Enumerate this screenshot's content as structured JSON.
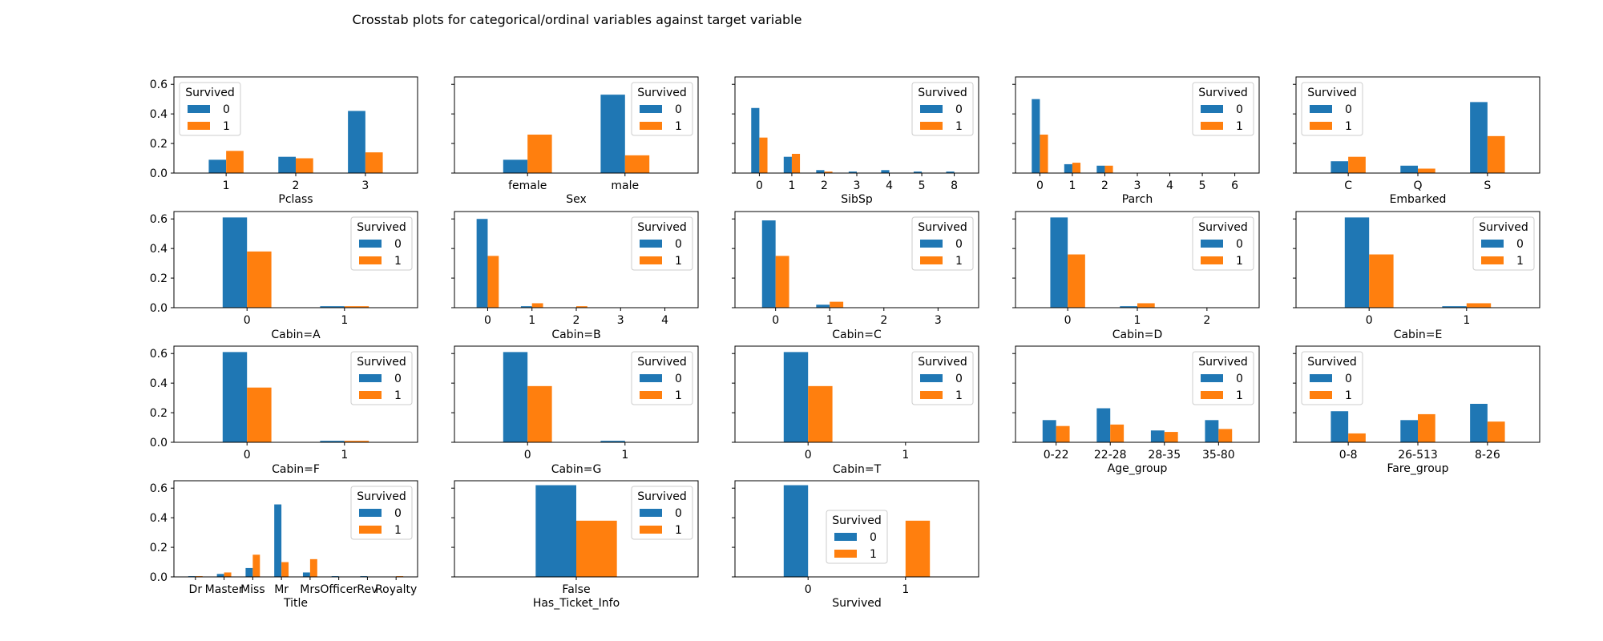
{
  "figure_title": "Crosstab plots for categorical/ordinal variables against target variable",
  "colors": {
    "survived_0": "#1f77b4",
    "survived_1": "#ff7f0e"
  },
  "chart_data": [
    {
      "type": "bar",
      "xlabel": "Pclass",
      "categories": [
        "1",
        "2",
        "3"
      ],
      "ylim": [
        0,
        0.65
      ],
      "yticks": [
        "0.0",
        "0.2",
        "0.4",
        "0.6"
      ],
      "legend": "upper left",
      "legend_title": "Survived",
      "series": [
        {
          "name": "0",
          "values": [
            0.09,
            0.11,
            0.42
          ]
        },
        {
          "name": "1",
          "values": [
            0.15,
            0.1,
            0.14
          ]
        }
      ]
    },
    {
      "type": "bar",
      "xlabel": "Sex",
      "categories": [
        "female",
        "male"
      ],
      "ylim": [
        0,
        0.65
      ],
      "legend": "upper right",
      "legend_title": "Survived",
      "series": [
        {
          "name": "0",
          "values": [
            0.09,
            0.53
          ]
        },
        {
          "name": "1",
          "values": [
            0.26,
            0.12
          ]
        }
      ]
    },
    {
      "type": "bar",
      "xlabel": "SibSp",
      "categories": [
        "0",
        "1",
        "2",
        "3",
        "4",
        "5",
        "8"
      ],
      "ylim": [
        0,
        0.65
      ],
      "legend": "upper right",
      "legend_title": "Survived",
      "series": [
        {
          "name": "0",
          "values": [
            0.44,
            0.11,
            0.02,
            0.01,
            0.02,
            0.01,
            0.01
          ]
        },
        {
          "name": "1",
          "values": [
            0.24,
            0.13,
            0.01,
            0.0,
            0.0,
            0.0,
            0.0
          ]
        }
      ]
    },
    {
      "type": "bar",
      "xlabel": "Parch",
      "categories": [
        "0",
        "1",
        "2",
        "3",
        "4",
        "5",
        "6"
      ],
      "ylim": [
        0,
        0.65
      ],
      "legend": "upper right",
      "legend_title": "Survived",
      "series": [
        {
          "name": "0",
          "values": [
            0.5,
            0.06,
            0.05,
            0.0,
            0.0,
            0.0,
            0.0
          ]
        },
        {
          "name": "1",
          "values": [
            0.26,
            0.07,
            0.05,
            0.0,
            0.0,
            0.0,
            0.0
          ]
        }
      ]
    },
    {
      "type": "bar",
      "xlabel": "Embarked",
      "categories": [
        "C",
        "Q",
        "S"
      ],
      "ylim": [
        0,
        0.65
      ],
      "legend": "upper left",
      "legend_title": "Survived",
      "series": [
        {
          "name": "0",
          "values": [
            0.08,
            0.05,
            0.48
          ]
        },
        {
          "name": "1",
          "values": [
            0.11,
            0.03,
            0.25
          ]
        }
      ]
    },
    {
      "type": "bar",
      "xlabel": "Cabin=A",
      "categories": [
        "0",
        "1"
      ],
      "ylim": [
        0,
        0.65
      ],
      "yticks": [
        "0.0",
        "0.2",
        "0.4",
        "0.6"
      ],
      "legend": "upper right",
      "legend_title": "Survived",
      "series": [
        {
          "name": "0",
          "values": [
            0.61,
            0.01
          ]
        },
        {
          "name": "1",
          "values": [
            0.38,
            0.01
          ]
        }
      ]
    },
    {
      "type": "bar",
      "xlabel": "Cabin=B",
      "categories": [
        "0",
        "1",
        "2",
        "3",
        "4"
      ],
      "ylim": [
        0,
        0.65
      ],
      "legend": "upper right",
      "legend_title": "Survived",
      "series": [
        {
          "name": "0",
          "values": [
            0.6,
            0.01,
            0.0,
            0.0,
            0.0
          ]
        },
        {
          "name": "1",
          "values": [
            0.35,
            0.03,
            0.01,
            0.0,
            0.0
          ]
        }
      ]
    },
    {
      "type": "bar",
      "xlabel": "Cabin=C",
      "categories": [
        "0",
        "1",
        "2",
        "3"
      ],
      "ylim": [
        0,
        0.65
      ],
      "legend": "upper right",
      "legend_title": "Survived",
      "series": [
        {
          "name": "0",
          "values": [
            0.59,
            0.02,
            0.0,
            0.0
          ]
        },
        {
          "name": "1",
          "values": [
            0.35,
            0.04,
            0.0,
            0.0
          ]
        }
      ]
    },
    {
      "type": "bar",
      "xlabel": "Cabin=D",
      "categories": [
        "0",
        "1",
        "2"
      ],
      "ylim": [
        0,
        0.65
      ],
      "legend": "upper right",
      "legend_title": "Survived",
      "series": [
        {
          "name": "0",
          "values": [
            0.61,
            0.01,
            0.0
          ]
        },
        {
          "name": "1",
          "values": [
            0.36,
            0.03,
            0.0
          ]
        }
      ]
    },
    {
      "type": "bar",
      "xlabel": "Cabin=E",
      "categories": [
        "0",
        "1"
      ],
      "ylim": [
        0,
        0.65
      ],
      "legend": "upper right",
      "legend_title": "Survived",
      "series": [
        {
          "name": "0",
          "values": [
            0.61,
            0.01
          ]
        },
        {
          "name": "1",
          "values": [
            0.36,
            0.03
          ]
        }
      ]
    },
    {
      "type": "bar",
      "xlabel": "Cabin=F",
      "categories": [
        "0",
        "1"
      ],
      "ylim": [
        0,
        0.65
      ],
      "yticks": [
        "0.0",
        "0.2",
        "0.4",
        "0.6"
      ],
      "legend": "upper right",
      "legend_title": "Survived",
      "series": [
        {
          "name": "0",
          "values": [
            0.61,
            0.01
          ]
        },
        {
          "name": "1",
          "values": [
            0.37,
            0.01
          ]
        }
      ]
    },
    {
      "type": "bar",
      "xlabel": "Cabin=G",
      "categories": [
        "0",
        "1"
      ],
      "ylim": [
        0,
        0.65
      ],
      "legend": "upper right",
      "legend_title": "Survived",
      "series": [
        {
          "name": "0",
          "values": [
            0.61,
            0.01
          ]
        },
        {
          "name": "1",
          "values": [
            0.38,
            0.0
          ]
        }
      ]
    },
    {
      "type": "bar",
      "xlabel": "Cabin=T",
      "categories": [
        "0",
        "1"
      ],
      "ylim": [
        0,
        0.65
      ],
      "legend": "upper right",
      "legend_title": "Survived",
      "series": [
        {
          "name": "0",
          "values": [
            0.61,
            0.0
          ]
        },
        {
          "name": "1",
          "values": [
            0.38,
            0.0
          ]
        }
      ]
    },
    {
      "type": "bar",
      "xlabel": "Age_group",
      "categories": [
        "0-22",
        "22-28",
        "28-35",
        "35-80"
      ],
      "ylim": [
        0,
        0.65
      ],
      "legend": "upper right",
      "legend_title": "Survived",
      "series": [
        {
          "name": "0",
          "values": [
            0.15,
            0.23,
            0.08,
            0.15
          ]
        },
        {
          "name": "1",
          "values": [
            0.11,
            0.12,
            0.07,
            0.09
          ]
        }
      ]
    },
    {
      "type": "bar",
      "xlabel": "Fare_group",
      "categories": [
        "0-8",
        "26-513",
        "8-26"
      ],
      "ylim": [
        0,
        0.65
      ],
      "legend": "upper left",
      "legend_title": "Survived",
      "series": [
        {
          "name": "0",
          "values": [
            0.21,
            0.15,
            0.26
          ]
        },
        {
          "name": "1",
          "values": [
            0.06,
            0.19,
            0.14
          ]
        }
      ]
    },
    {
      "type": "bar",
      "xlabel": "Title",
      "categories": [
        "Dr",
        "Master",
        "Miss",
        "Mr",
        "Mrs",
        "Officer",
        "Rev",
        "Royalty"
      ],
      "ylim": [
        0,
        0.65
      ],
      "yticks": [
        "0.0",
        "0.2",
        "0.4",
        "0.6"
      ],
      "legend": "upper right",
      "legend_title": "Survived",
      "series": [
        {
          "name": "0",
          "values": [
            0.005,
            0.02,
            0.06,
            0.49,
            0.03,
            0.005,
            0.005,
            0.0
          ]
        },
        {
          "name": "1",
          "values": [
            0.005,
            0.03,
            0.15,
            0.1,
            0.12,
            0.0,
            0.0,
            0.005
          ]
        }
      ]
    },
    {
      "type": "bar",
      "xlabel": "Has_Ticket_Info",
      "categories": [
        "False"
      ],
      "ylim": [
        0,
        0.65
      ],
      "legend": "upper right",
      "legend_title": "Survived",
      "series": [
        {
          "name": "0",
          "values": [
            0.62
          ]
        },
        {
          "name": "1",
          "values": [
            0.38
          ]
        }
      ]
    },
    {
      "type": "bar",
      "xlabel": "Survived",
      "categories": [
        "0",
        "1"
      ],
      "ylim": [
        0,
        0.65
      ],
      "legend": "center",
      "legend_title": "Survived",
      "series": [
        {
          "name": "0",
          "values": [
            0.62,
            0.0
          ]
        },
        {
          "name": "1",
          "values": [
            0.0,
            0.38
          ]
        }
      ]
    }
  ]
}
